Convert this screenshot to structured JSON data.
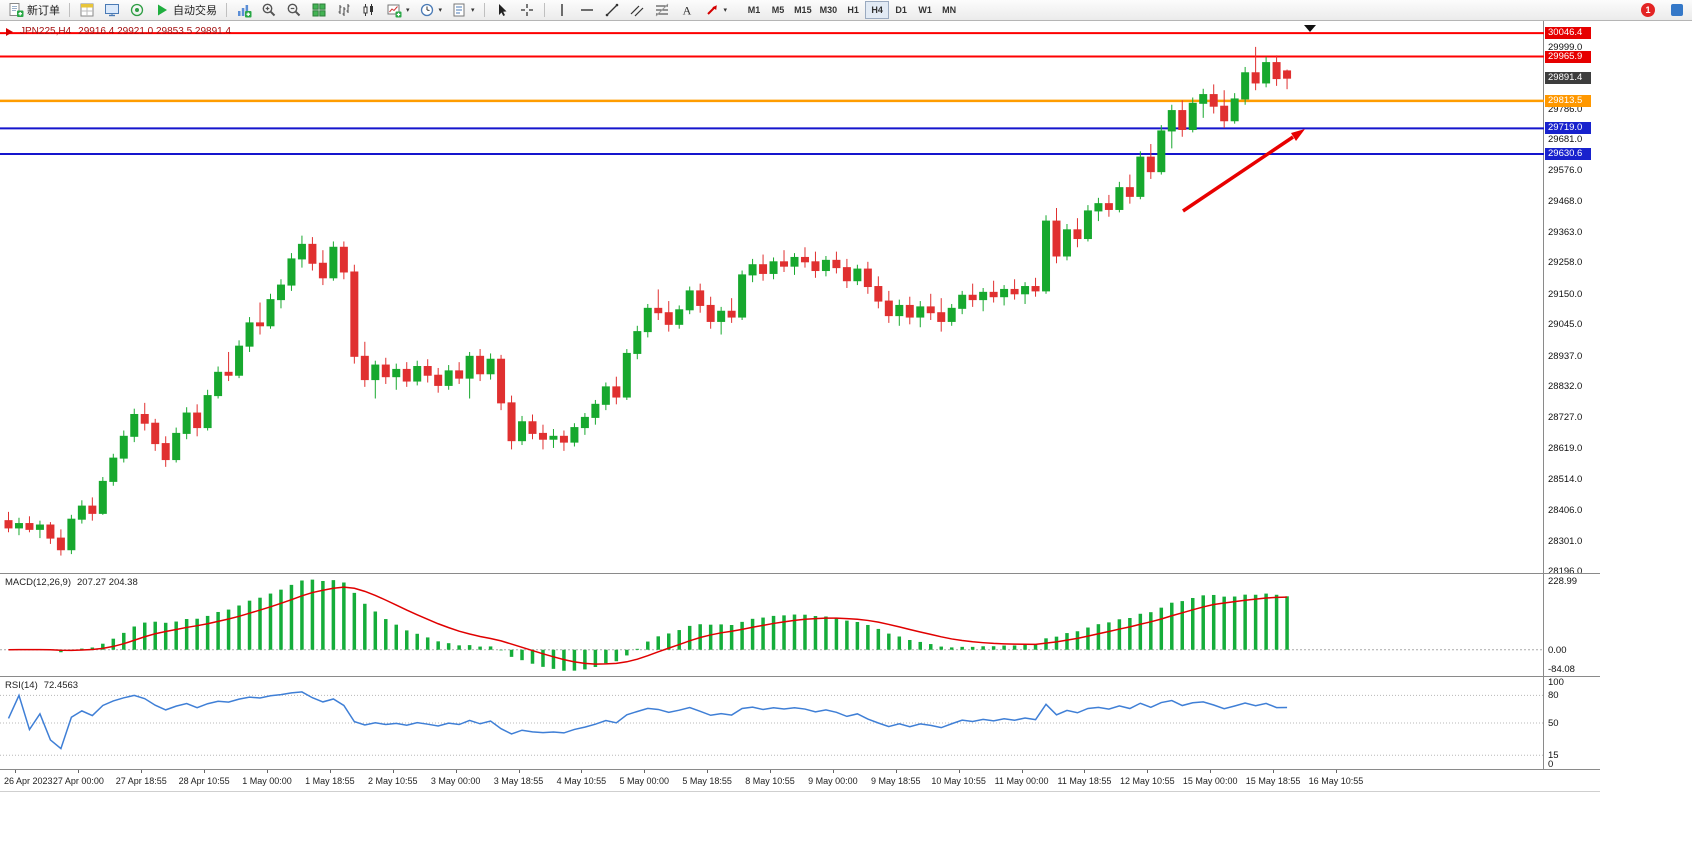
{
  "toolbar": {
    "new_order_label": "新订单",
    "autotrade_label": "自动交易",
    "timeframes": [
      "M1",
      "M5",
      "M15",
      "M30",
      "H1",
      "H4",
      "D1",
      "W1",
      "MN"
    ],
    "active_timeframe": "H4",
    "notification_count": "1"
  },
  "chart": {
    "symbol_period": "JPN225,H4",
    "ohlc_values": "29916.4 29921.0 29853.5 29891.4"
  },
  "chart_data": {
    "type": "candlestick",
    "symbol": "JPN225",
    "period": "H4",
    "current_bar": {
      "open": 29916.4,
      "high": 29921.0,
      "low": 29853.5,
      "close": 29891.4
    },
    "colors": {
      "bull": "#17a82e",
      "bear": "#e03030",
      "arrow": "#e80000"
    },
    "price_axis": {
      "max": 30088,
      "min": 28190,
      "labels": [
        "29999.0",
        "29786.0",
        "29681.0",
        "29576.0",
        "29468.0",
        "29363.0",
        "29258.0",
        "29150.0",
        "29045.0",
        "28937.0",
        "28832.0",
        "28727.0",
        "28619.0",
        "28514.0",
        "28406.0",
        "28301.0",
        "28196.0"
      ]
    },
    "price_tags": [
      {
        "text": "30046.4",
        "price": 30046.4,
        "color": "#e60000"
      },
      {
        "text": "29965.9",
        "price": 29965.9,
        "color": "#e60000"
      },
      {
        "text": "29891.4",
        "price": 29891.4,
        "color": "#3d3d3d"
      },
      {
        "text": "29813.5",
        "price": 29813.5,
        "color": "#ff9800"
      },
      {
        "text": "29719.0",
        "price": 29719.0,
        "color": "#1822cd"
      },
      {
        "text": "29630.6",
        "price": 29630.6,
        "color": "#1822cd"
      }
    ],
    "h_lines": [
      {
        "price": 30046.4,
        "color": "#fe0000",
        "width": 2
      },
      {
        "price": 29965.9,
        "color": "#fe0000",
        "width": 2
      },
      {
        "price": 29813.5,
        "color": "#ff9d00",
        "width": 2.5
      },
      {
        "price": 29719.0,
        "color": "#1515cd",
        "width": 2
      },
      {
        "price": 29630.6,
        "color": "#1515cd",
        "width": 2
      }
    ],
    "annotations": [
      {
        "type": "arrow",
        "color": "#e80000"
      }
    ],
    "candles": [
      [
        28370,
        28400,
        28330,
        28345
      ],
      [
        28345,
        28380,
        28320,
        28360
      ],
      [
        28360,
        28385,
        28330,
        28340
      ],
      [
        28340,
        28370,
        28310,
        28355
      ],
      [
        28355,
        28365,
        28290,
        28310
      ],
      [
        28310,
        28340,
        28250,
        28270
      ],
      [
        28270,
        28390,
        28255,
        28375
      ],
      [
        28375,
        28440,
        28360,
        28420
      ],
      [
        28420,
        28450,
        28370,
        28395
      ],
      [
        28395,
        28520,
        28390,
        28505
      ],
      [
        28505,
        28600,
        28490,
        28585
      ],
      [
        28585,
        28680,
        28570,
        28660
      ],
      [
        28660,
        28755,
        28640,
        28735
      ],
      [
        28735,
        28775,
        28680,
        28705
      ],
      [
        28705,
        28720,
        28610,
        28635
      ],
      [
        28635,
        28660,
        28555,
        28580
      ],
      [
        28580,
        28690,
        28570,
        28670
      ],
      [
        28670,
        28760,
        28650,
        28740
      ],
      [
        28740,
        28770,
        28660,
        28690
      ],
      [
        28690,
        28820,
        28680,
        28800
      ],
      [
        28800,
        28900,
        28790,
        28880
      ],
      [
        28880,
        28950,
        28850,
        28870
      ],
      [
        28870,
        28990,
        28860,
        28970
      ],
      [
        28970,
        29070,
        28950,
        29050
      ],
      [
        29050,
        29120,
        29010,
        29040
      ],
      [
        29040,
        29150,
        29030,
        29130
      ],
      [
        29130,
        29200,
        29100,
        29180
      ],
      [
        29180,
        29290,
        29160,
        29270
      ],
      [
        29270,
        29350,
        29240,
        29320
      ],
      [
        29320,
        29345,
        29230,
        29255
      ],
      [
        29255,
        29300,
        29180,
        29205
      ],
      [
        29205,
        29330,
        29195,
        29310
      ],
      [
        29310,
        29330,
        29200,
        29225
      ],
      [
        29225,
        29250,
        28910,
        28935
      ],
      [
        28935,
        28985,
        28830,
        28855
      ],
      [
        28855,
        28920,
        28790,
        28905
      ],
      [
        28905,
        28930,
        28840,
        28865
      ],
      [
        28865,
        28910,
        28820,
        28890
      ],
      [
        28890,
        28915,
        28830,
        28850
      ],
      [
        28850,
        28920,
        28835,
        28900
      ],
      [
        28900,
        28925,
        28845,
        28870
      ],
      [
        28870,
        28895,
        28810,
        28835
      ],
      [
        28835,
        28905,
        28820,
        28885
      ],
      [
        28885,
        28915,
        28840,
        28860
      ],
      [
        28860,
        28950,
        28790,
        28935
      ],
      [
        28935,
        28960,
        28850,
        28875
      ],
      [
        28875,
        28945,
        28855,
        28925
      ],
      [
        28925,
        28940,
        28750,
        28775
      ],
      [
        28775,
        28800,
        28615,
        28645
      ],
      [
        28645,
        28730,
        28630,
        28710
      ],
      [
        28710,
        28735,
        28650,
        28670
      ],
      [
        28670,
        28700,
        28615,
        28650
      ],
      [
        28650,
        28685,
        28620,
        28660
      ],
      [
        28660,
        28680,
        28610,
        28640
      ],
      [
        28640,
        28705,
        28625,
        28690
      ],
      [
        28690,
        28740,
        28665,
        28725
      ],
      [
        28725,
        28785,
        28700,
        28770
      ],
      [
        28770,
        28845,
        28750,
        28830
      ],
      [
        28830,
        28865,
        28770,
        28795
      ],
      [
        28795,
        28960,
        28785,
        28945
      ],
      [
        28945,
        29040,
        28925,
        29020
      ],
      [
        29020,
        29115,
        29000,
        29100
      ],
      [
        29100,
        29165,
        29060,
        29085
      ],
      [
        29085,
        29125,
        29020,
        29045
      ],
      [
        29045,
        29110,
        29030,
        29095
      ],
      [
        29095,
        29175,
        29080,
        29160
      ],
      [
        29160,
        29185,
        29085,
        29110
      ],
      [
        29110,
        29140,
        29030,
        29055
      ],
      [
        29055,
        29105,
        29010,
        29090
      ],
      [
        29090,
        29135,
        29050,
        29070
      ],
      [
        29070,
        29230,
        29060,
        29215
      ],
      [
        29215,
        29270,
        29190,
        29250
      ],
      [
        29250,
        29285,
        29195,
        29220
      ],
      [
        29220,
        29275,
        29200,
        29260
      ],
      [
        29260,
        29300,
        29225,
        29245
      ],
      [
        29245,
        29290,
        29215,
        29275
      ],
      [
        29275,
        29310,
        29240,
        29260
      ],
      [
        29260,
        29295,
        29205,
        29230
      ],
      [
        29230,
        29280,
        29210,
        29265
      ],
      [
        29265,
        29295,
        29220,
        29240
      ],
      [
        29240,
        29270,
        29170,
        29195
      ],
      [
        29195,
        29250,
        29180,
        29235
      ],
      [
        29235,
        29260,
        29150,
        29175
      ],
      [
        29175,
        29210,
        29100,
        29125
      ],
      [
        29125,
        29160,
        29050,
        29075
      ],
      [
        29075,
        29130,
        29040,
        29110
      ],
      [
        29110,
        29140,
        29045,
        29070
      ],
      [
        29070,
        29125,
        29035,
        29105
      ],
      [
        29105,
        29150,
        29060,
        29085
      ],
      [
        29085,
        29135,
        29020,
        29055
      ],
      [
        29055,
        29115,
        29040,
        29100
      ],
      [
        29100,
        29160,
        29080,
        29145
      ],
      [
        29145,
        29185,
        29105,
        29130
      ],
      [
        29130,
        29170,
        29090,
        29155
      ],
      [
        29155,
        29195,
        29120,
        29140
      ],
      [
        29140,
        29180,
        29110,
        29165
      ],
      [
        29165,
        29200,
        29130,
        29150
      ],
      [
        29150,
        29190,
        29115,
        29175
      ],
      [
        29175,
        29205,
        29140,
        29160
      ],
      [
        29160,
        29420,
        29150,
        29400
      ],
      [
        29400,
        29445,
        29255,
        29280
      ],
      [
        29280,
        29390,
        29265,
        29370
      ],
      [
        29370,
        29410,
        29310,
        29340
      ],
      [
        29340,
        29455,
        29330,
        29435
      ],
      [
        29435,
        29480,
        29400,
        29460
      ],
      [
        29460,
        29490,
        29415,
        29440
      ],
      [
        29440,
        29535,
        29430,
        29515
      ],
      [
        29515,
        29560,
        29460,
        29485
      ],
      [
        29485,
        29640,
        29475,
        29620
      ],
      [
        29620,
        29665,
        29545,
        29570
      ],
      [
        29570,
        29730,
        29560,
        29710
      ],
      [
        29710,
        29800,
        29650,
        29780
      ],
      [
        29780,
        29815,
        29690,
        29715
      ],
      [
        29715,
        29825,
        29705,
        29805
      ],
      [
        29805,
        29855,
        29755,
        29835
      ],
      [
        29835,
        29870,
        29770,
        29795
      ],
      [
        29795,
        29850,
        29720,
        29745
      ],
      [
        29745,
        29840,
        29735,
        29820
      ],
      [
        29820,
        29930,
        29800,
        29910
      ],
      [
        29910,
        29999,
        29850,
        29875
      ],
      [
        29875,
        29965,
        29860,
        29945
      ],
      [
        29945,
        29970,
        29865,
        29890
      ],
      [
        29916.4,
        29921.0,
        29853.5,
        29891.4
      ]
    ],
    "time_labels": [
      "26 Apr 2023",
      "27 Apr 00:00",
      "27 Apr 18:55",
      "28 Apr 10:55",
      "1 May 00:00",
      "1 May 18:55",
      "2 May 10:55",
      "3 May 00:00",
      "3 May 18:55",
      "4 May 10:55",
      "5 May 00:00",
      "5 May 18:55",
      "8 May 10:55",
      "9 May 00:00",
      "9 May 18:55",
      "10 May 10:55",
      "11 May 00:00",
      "11 May 18:55",
      "12 May 10:55",
      "15 May 00:00",
      "15 May 18:55",
      "16 May 10:55"
    ],
    "macd": {
      "label": "MACD(12,26,9)",
      "values": "207.27 204.38",
      "scale_max": "228.99",
      "scale_zero": "0.00",
      "scale_min": "-84.08",
      "histogram_color": "#15ad3a",
      "signal_color": "#e00000"
    },
    "rsi": {
      "label": "RSI(14)",
      "value": "72.4563",
      "line_color": "#3f7fd6",
      "levels": [
        80,
        50,
        15
      ],
      "scale_labels": [
        "100",
        "80",
        "50",
        "15",
        "0"
      ]
    }
  }
}
